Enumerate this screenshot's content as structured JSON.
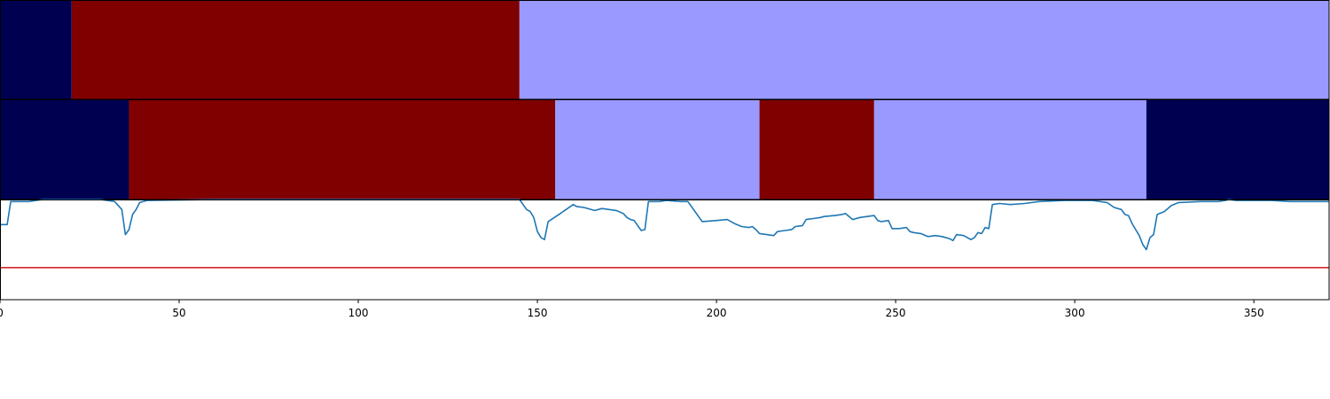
{
  "chart_data": {
    "type": "segmentation-timeline",
    "x_range": [
      0,
      371
    ],
    "x_ticks": [
      0,
      50,
      100,
      150,
      200,
      250,
      300,
      350
    ],
    "x_tick_labels": [
      "0",
      "50",
      "100",
      "150",
      "200",
      "250",
      "300",
      "350"
    ],
    "grid": false,
    "legend": "none",
    "colors": {
      "class_a": "#000050",
      "class_b": "#800000",
      "class_c": "#9999ff",
      "signal": "#1f77b4",
      "threshold": "#d62728"
    },
    "segment_rows": [
      {
        "segments": [
          {
            "start": 0,
            "end": 20,
            "class": "class_a"
          },
          {
            "start": 20,
            "end": 145,
            "class": "class_b"
          },
          {
            "start": 145,
            "end": 371,
            "class": "class_c"
          }
        ]
      },
      {
        "segments": [
          {
            "start": 0,
            "end": 36,
            "class": "class_a"
          },
          {
            "start": 36,
            "end": 155,
            "class": "class_b"
          },
          {
            "start": 155,
            "end": 212,
            "class": "class_c"
          },
          {
            "start": 212,
            "end": 244,
            "class": "class_b"
          },
          {
            "start": 244,
            "end": 320,
            "class": "class_c"
          },
          {
            "start": 320,
            "end": 371,
            "class": "class_a"
          }
        ]
      }
    ],
    "signal": {
      "y_range": [
        0,
        1
      ],
      "threshold": 0.32,
      "points": [
        [
          0,
          0.75
        ],
        [
          2,
          0.75
        ],
        [
          3,
          0.98
        ],
        [
          8,
          0.98
        ],
        [
          10,
          0.99
        ],
        [
          12,
          1.0
        ],
        [
          28,
          1.0
        ],
        [
          32,
          0.98
        ],
        [
          34,
          0.9
        ],
        [
          35,
          0.65
        ],
        [
          36,
          0.7
        ],
        [
          37,
          0.85
        ],
        [
          38,
          0.9
        ],
        [
          39,
          0.97
        ],
        [
          41,
          0.99
        ],
        [
          60,
          1.0
        ],
        [
          145,
          1.0
        ],
        [
          147,
          0.9
        ],
        [
          148,
          0.88
        ],
        [
          149,
          0.82
        ],
        [
          150,
          0.68
        ],
        [
          151,
          0.62
        ],
        [
          152,
          0.6
        ],
        [
          153,
          0.78
        ],
        [
          156,
          0.85
        ],
        [
          158,
          0.9
        ],
        [
          160,
          0.95
        ],
        [
          161,
          0.93
        ],
        [
          163,
          0.92
        ],
        [
          166,
          0.89
        ],
        [
          168,
          0.91
        ],
        [
          170,
          0.9
        ],
        [
          172,
          0.89
        ],
        [
          174,
          0.86
        ],
        [
          175,
          0.82
        ],
        [
          176,
          0.8
        ],
        [
          177,
          0.79
        ],
        [
          178,
          0.74
        ],
        [
          179,
          0.69
        ],
        [
          180,
          0.7
        ],
        [
          181,
          0.98
        ],
        [
          184,
          0.98
        ],
        [
          186,
          0.99
        ],
        [
          190,
          0.98
        ],
        [
          192,
          0.98
        ],
        [
          196,
          0.78
        ],
        [
          200,
          0.79
        ],
        [
          203,
          0.8
        ],
        [
          205,
          0.76
        ],
        [
          207,
          0.73
        ],
        [
          209,
          0.72
        ],
        [
          210,
          0.73
        ],
        [
          211,
          0.7
        ],
        [
          212,
          0.66
        ],
        [
          214,
          0.65
        ],
        [
          216,
          0.64
        ],
        [
          217,
          0.68
        ],
        [
          219,
          0.69
        ],
        [
          221,
          0.7
        ],
        [
          222,
          0.73
        ],
        [
          224,
          0.74
        ],
        [
          225,
          0.8
        ],
        [
          227,
          0.81
        ],
        [
          229,
          0.82
        ],
        [
          230,
          0.83
        ],
        [
          233,
          0.84
        ],
        [
          235,
          0.85
        ],
        [
          236,
          0.86
        ],
        [
          238,
          0.8
        ],
        [
          240,
          0.82
        ],
        [
          242,
          0.83
        ],
        [
          244,
          0.84
        ],
        [
          245,
          0.79
        ],
        [
          246,
          0.78
        ],
        [
          248,
          0.79
        ],
        [
          249,
          0.71
        ],
        [
          251,
          0.71
        ],
        [
          253,
          0.72
        ],
        [
          254,
          0.68
        ],
        [
          255,
          0.67
        ],
        [
          257,
          0.66
        ],
        [
          259,
          0.63
        ],
        [
          261,
          0.64
        ],
        [
          263,
          0.63
        ],
        [
          265,
          0.61
        ],
        [
          266,
          0.59
        ],
        [
          267,
          0.65
        ],
        [
          269,
          0.64
        ],
        [
          271,
          0.6
        ],
        [
          272,
          0.62
        ],
        [
          273,
          0.67
        ],
        [
          274,
          0.66
        ],
        [
          275,
          0.72
        ],
        [
          276,
          0.71
        ],
        [
          277,
          0.95
        ],
        [
          279,
          0.96
        ],
        [
          282,
          0.95
        ],
        [
          286,
          0.96
        ],
        [
          290,
          0.98
        ],
        [
          297,
          0.99
        ],
        [
          305,
          0.99
        ],
        [
          309,
          0.97
        ],
        [
          311,
          0.92
        ],
        [
          313,
          0.9
        ],
        [
          314,
          0.85
        ],
        [
          315,
          0.84
        ],
        [
          316,
          0.76
        ],
        [
          317,
          0.7
        ],
        [
          318,
          0.64
        ],
        [
          319,
          0.55
        ],
        [
          320,
          0.5
        ],
        [
          321,
          0.62
        ],
        [
          322,
          0.65
        ],
        [
          323,
          0.85
        ],
        [
          325,
          0.88
        ],
        [
          327,
          0.94
        ],
        [
          329,
          0.97
        ],
        [
          335,
          0.98
        ],
        [
          340,
          0.98
        ],
        [
          342,
          0.99
        ],
        [
          343,
          1.0
        ],
        [
          345,
          0.99
        ],
        [
          355,
          0.99
        ],
        [
          360,
          0.98
        ],
        [
          371,
          0.98
        ]
      ]
    }
  }
}
